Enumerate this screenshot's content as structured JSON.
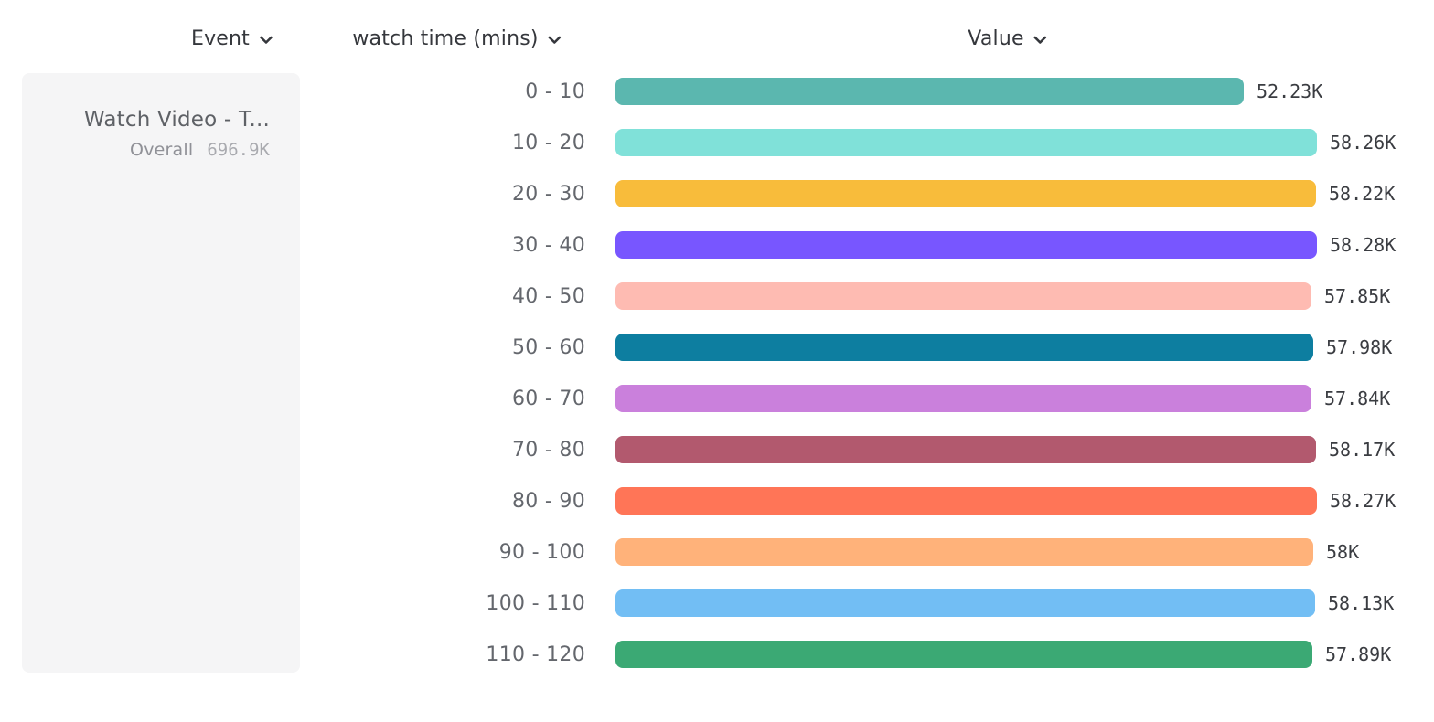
{
  "header": {
    "columns": [
      {
        "label": "Event"
      },
      {
        "label": "watch time (mins)"
      },
      {
        "label": "Value"
      }
    ]
  },
  "event_card": {
    "title": "Watch Video - T...",
    "overall_label": "Overall",
    "overall_value": "696.9K"
  },
  "chart_data": {
    "type": "bar",
    "orientation": "horizontal",
    "title": "",
    "xlabel": "Value",
    "ylabel": "watch time (mins)",
    "categories": [
      "0 - 10",
      "10 - 20",
      "20 - 30",
      "30 - 40",
      "40 - 50",
      "50 - 60",
      "60 - 70",
      "70 - 80",
      "80 - 90",
      "90 - 100",
      "100 - 110",
      "110 - 120"
    ],
    "values": [
      52230,
      58260,
      58220,
      58280,
      57850,
      57980,
      57840,
      58170,
      58270,
      58000,
      58130,
      57890
    ],
    "value_labels": [
      "52.23K",
      "58.26K",
      "58.22K",
      "58.28K",
      "57.85K",
      "57.98K",
      "57.84K",
      "58.17K",
      "58.27K",
      "58K",
      "58.13K",
      "57.89K"
    ],
    "colors": [
      "#5BB7AF",
      "#80E1D9",
      "#F8BC3B",
      "#7856FF",
      "#FEBBB2",
      "#0D7EA0",
      "#CA80DC",
      "#B2596E",
      "#FF7557",
      "#FFB27A",
      "#72BEF4",
      "#3BA974"
    ],
    "xlim": [
      0,
      58280
    ],
    "grid": false,
    "legend": false
  },
  "colors": {
    "card_bg": "#F5F5F6",
    "header_text": "#35373C",
    "category_text": "#64676D",
    "value_text": "#3A3C41"
  }
}
